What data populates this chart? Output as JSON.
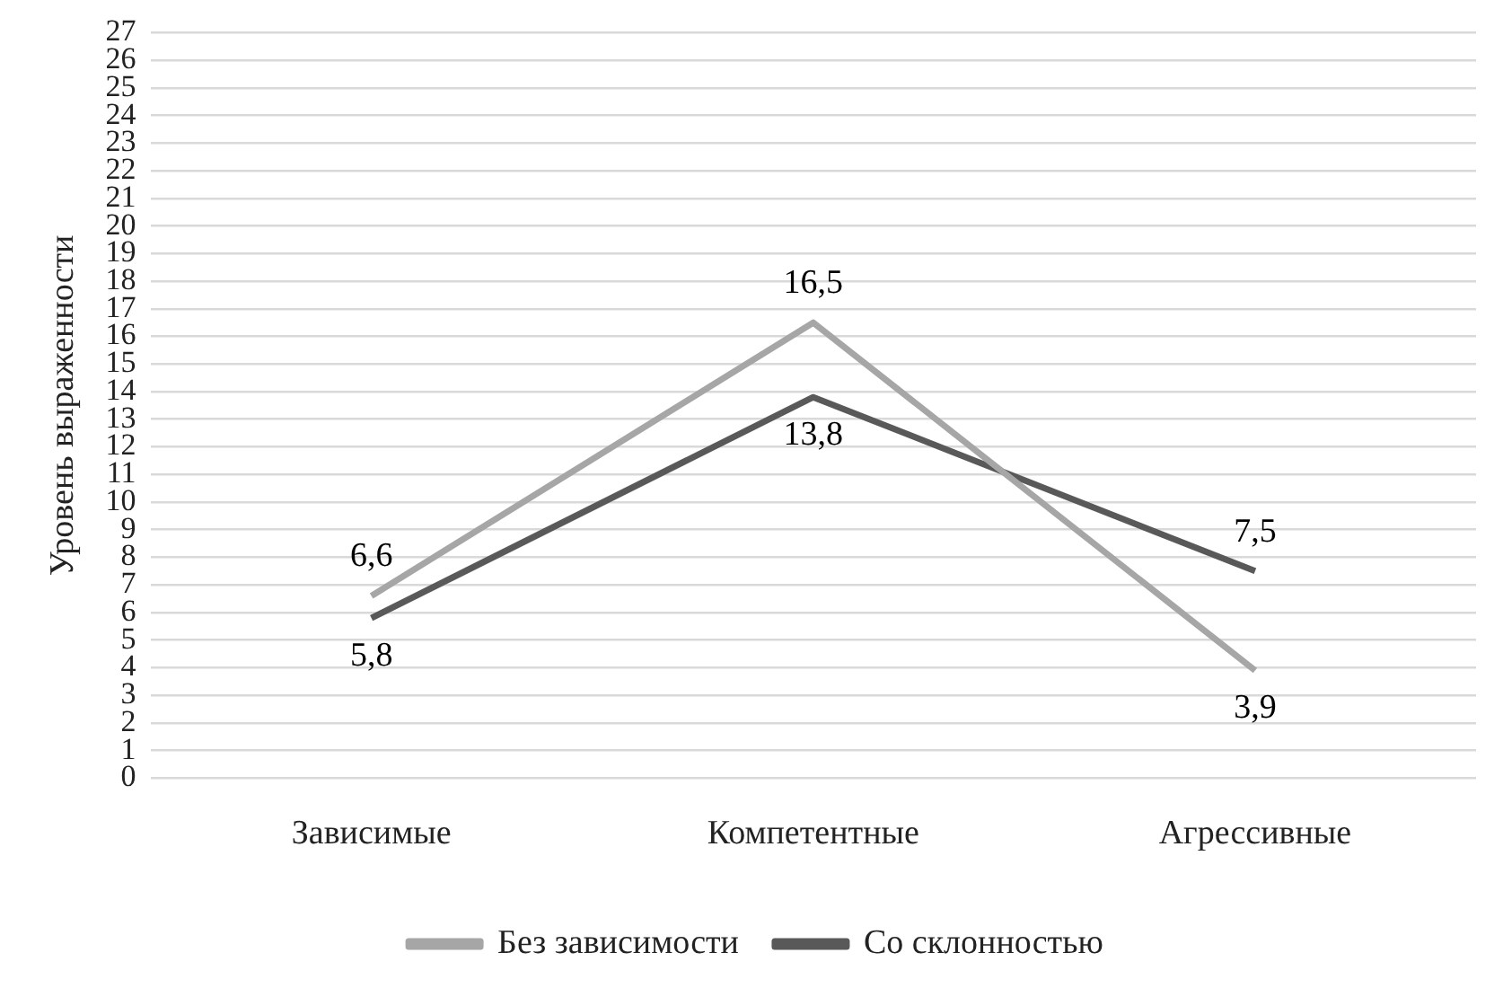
{
  "chart_data": {
    "type": "line",
    "ylabel": "Уровень выраженности",
    "categories": [
      "Зависимые",
      "Компетентные",
      "Агрессивные"
    ],
    "series": [
      {
        "name": "Без зависимости",
        "color": "#a6a6a6",
        "values": [
          6.6,
          16.5,
          3.9
        ],
        "value_labels": [
          "6,6",
          "16,5",
          "3,9"
        ]
      },
      {
        "name": "Со склонностью",
        "color": "#595959",
        "values": [
          5.8,
          13.8,
          7.5
        ],
        "value_labels": [
          "5,8",
          "13,8",
          "7,5"
        ]
      }
    ],
    "ylim": [
      0,
      27
    ],
    "yticks": [
      0,
      1,
      2,
      3,
      4,
      5,
      6,
      7,
      8,
      9,
      10,
      11,
      12,
      13,
      14,
      15,
      16,
      17,
      18,
      19,
      20,
      21,
      22,
      23,
      24,
      25,
      26,
      27
    ],
    "grid": "y",
    "legend": "bottom",
    "marker": "none",
    "line_style": "solid"
  }
}
